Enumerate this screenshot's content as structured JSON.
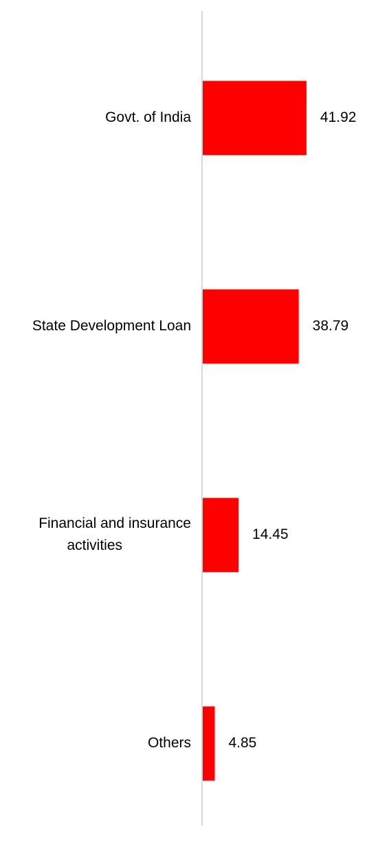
{
  "chart_data": {
    "type": "bar",
    "orientation": "horizontal",
    "categories": [
      "Govt. of India",
      "State Development Loan",
      "Financial and insurance activities",
      "Others"
    ],
    "category_lines": [
      [
        "Govt. of India"
      ],
      [
        "State Development Loan"
      ],
      [
        "Financial and insurance",
        "activities"
      ],
      [
        "Others"
      ]
    ],
    "values": [
      41.92,
      38.79,
      14.45,
      4.85
    ],
    "value_labels": [
      "41.92",
      "38.79",
      "14.45",
      "4.85"
    ],
    "xlim": [
      0,
      100
    ],
    "title": "",
    "xlabel": "",
    "ylabel": "",
    "grid": false,
    "legend": "none",
    "colors": {
      "bar": "#ff0000",
      "axis": "#d9d9d9",
      "text": "#000000"
    }
  }
}
